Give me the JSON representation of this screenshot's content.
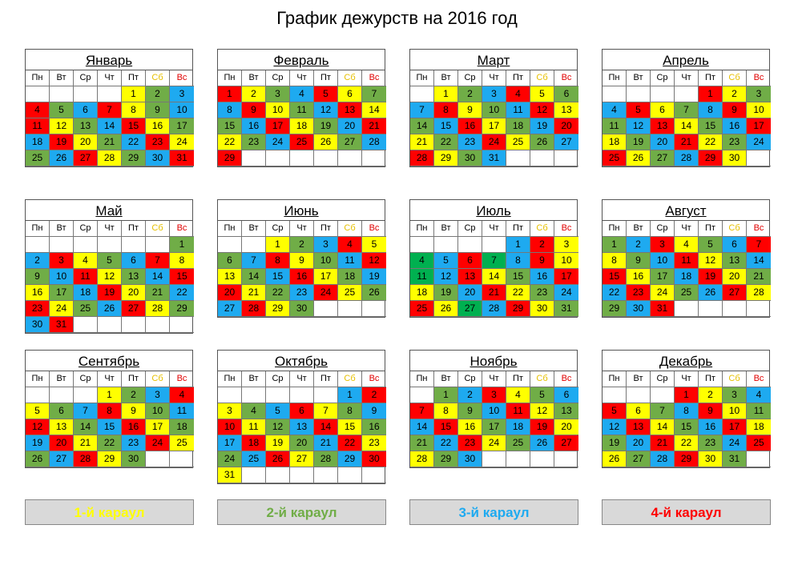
{
  "title": "График дежурств на 2016 год",
  "weekdays": [
    "Пн",
    "Вт",
    "Ср",
    "Чт",
    "Пт",
    "Сб",
    "Вс"
  ],
  "colors": {
    "1": "#ffff00",
    "2": "#70ad47",
    "3": "#1eaaf0",
    "4": "#ff0000",
    "5": "#00b050"
  },
  "legend": [
    {
      "label": "1-й караул",
      "color": "#ffff00"
    },
    {
      "label": "2-й караул",
      "color": "#70ad47"
    },
    {
      "label": "3-й караул",
      "color": "#1eaaf0"
    },
    {
      "label": "4-й караул",
      "color": "#ff0000"
    }
  ],
  "months": [
    {
      "name": "Январь",
      "offset": 4,
      "duty": [
        1,
        2,
        3,
        4,
        2,
        3,
        4,
        1,
        2,
        3,
        4,
        1,
        2,
        3,
        4,
        1,
        2,
        3,
        4,
        1,
        2,
        3,
        4,
        1,
        2,
        3,
        4,
        1,
        2,
        3,
        4
      ]
    },
    {
      "name": "Февраль",
      "offset": 0,
      "duty": [
        4,
        1,
        2,
        3,
        4,
        1,
        2,
        3,
        4,
        1,
        2,
        3,
        4,
        1,
        2,
        3,
        4,
        1,
        2,
        3,
        4,
        1,
        2,
        3,
        4,
        1,
        2,
        3,
        4
      ]
    },
    {
      "name": "Март",
      "offset": 1,
      "duty": [
        1,
        2,
        3,
        4,
        1,
        2,
        3,
        4,
        1,
        2,
        3,
        4,
        1,
        2,
        3,
        4,
        1,
        2,
        3,
        4,
        1,
        2,
        3,
        4,
        1,
        2,
        3,
        4,
        1,
        2,
        3
      ]
    },
    {
      "name": "Апрель",
      "offset": 4,
      "duty": [
        4,
        1,
        2,
        3,
        4,
        1,
        2,
        3,
        4,
        1,
        2,
        3,
        4,
        1,
        2,
        3,
        4,
        1,
        2,
        3,
        4,
        1,
        2,
        3,
        4,
        1,
        2,
        3,
        4,
        1
      ]
    },
    {
      "name": "Май",
      "offset": 6,
      "duty": [
        2,
        3,
        4,
        1,
        2,
        3,
        4,
        1,
        2,
        3,
        4,
        1,
        2,
        3,
        4,
        1,
        2,
        3,
        4,
        1,
        2,
        3,
        4,
        1,
        2,
        3,
        4,
        1,
        2,
        3,
        4
      ]
    },
    {
      "name": "Июнь",
      "offset": 2,
      "duty": [
        1,
        2,
        3,
        4,
        1,
        2,
        3,
        4,
        1,
        2,
        3,
        4,
        1,
        2,
        3,
        4,
        1,
        2,
        3,
        4,
        1,
        2,
        3,
        4,
        1,
        2,
        3,
        4,
        1,
        2
      ]
    },
    {
      "name": "Июль",
      "offset": 4,
      "duty": [
        3,
        4,
        1,
        5,
        3,
        4,
        5,
        3,
        4,
        1,
        5,
        3,
        4,
        1,
        2,
        3,
        4,
        1,
        2,
        3,
        4,
        1,
        2,
        3,
        4,
        1,
        5,
        3,
        4,
        1,
        2
      ]
    },
    {
      "name": "Август",
      "offset": 0,
      "duty": [
        2,
        3,
        4,
        1,
        2,
        3,
        4,
        1,
        2,
        3,
        4,
        1,
        2,
        3,
        4,
        1,
        2,
        3,
        4,
        1,
        2,
        3,
        4,
        1,
        2,
        3,
        4,
        1,
        2,
        3,
        4
      ]
    },
    {
      "name": "Сентябрь",
      "offset": 3,
      "duty": [
        1,
        2,
        3,
        4,
        1,
        2,
        3,
        4,
        1,
        2,
        3,
        4,
        1,
        2,
        3,
        4,
        1,
        2,
        3,
        4,
        1,
        2,
        3,
        4,
        1,
        2,
        3,
        4,
        1,
        2
      ]
    },
    {
      "name": "Октябрь",
      "offset": 5,
      "duty": [
        3,
        4,
        1,
        2,
        3,
        4,
        1,
        2,
        3,
        4,
        1,
        2,
        3,
        4,
        1,
        2,
        3,
        4,
        1,
        2,
        3,
        4,
        1,
        2,
        3,
        4,
        1,
        2,
        3,
        4,
        1
      ]
    },
    {
      "name": "Ноябрь",
      "offset": 1,
      "duty": [
        2,
        3,
        4,
        1,
        2,
        3,
        4,
        1,
        2,
        3,
        4,
        1,
        2,
        3,
        4,
        1,
        2,
        3,
        4,
        1,
        2,
        3,
        4,
        1,
        2,
        3,
        4,
        1,
        2,
        3
      ]
    },
    {
      "name": "Декабрь",
      "offset": 3,
      "duty": [
        4,
        1,
        2,
        3,
        4,
        1,
        2,
        3,
        4,
        1,
        2,
        3,
        4,
        1,
        2,
        3,
        4,
        1,
        2,
        3,
        4,
        1,
        2,
        3,
        4,
        1,
        2,
        3,
        4,
        1,
        2
      ]
    }
  ]
}
